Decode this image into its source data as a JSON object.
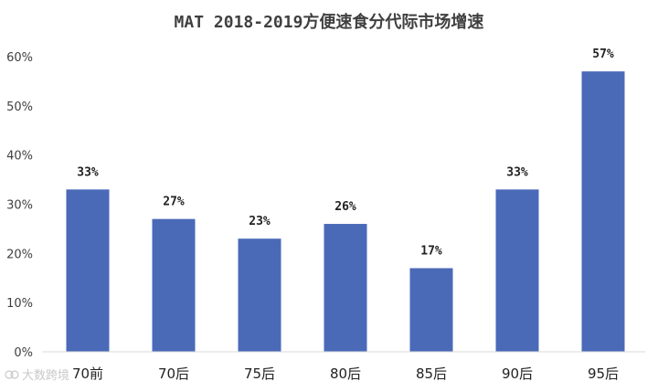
{
  "chart_data": {
    "type": "bar",
    "title": "MAT 2018-2019方便速食分代际市场增速",
    "categories": [
      "70前",
      "70后",
      "75后",
      "80后",
      "85后",
      "90后",
      "95后"
    ],
    "values": [
      33,
      27,
      23,
      26,
      17,
      33,
      57
    ],
    "data_labels": [
      "33%",
      "27%",
      "23%",
      "26%",
      "17%",
      "33%",
      "57%"
    ],
    "yticks": [
      "0%",
      "10%",
      "20%",
      "30%",
      "40%",
      "50%",
      "60%"
    ],
    "ylim": [
      0,
      60
    ],
    "xlabel": "",
    "ylabel": "",
    "grid": false,
    "bar_color": "#4a6ab8"
  },
  "watermark": "大数跨境"
}
